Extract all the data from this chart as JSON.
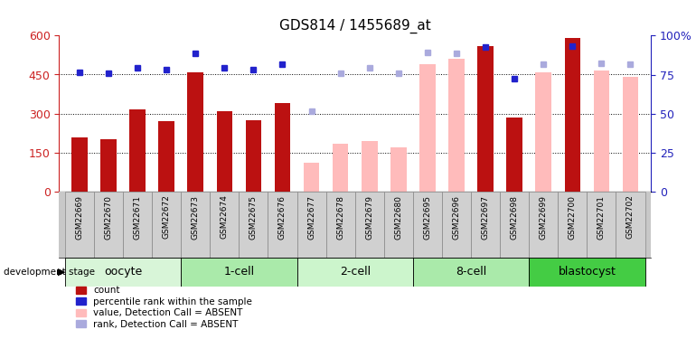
{
  "title": "GDS814 / 1455689_at",
  "samples": [
    "GSM22669",
    "GSM22670",
    "GSM22671",
    "GSM22672",
    "GSM22673",
    "GSM22674",
    "GSM22675",
    "GSM22676",
    "GSM22677",
    "GSM22678",
    "GSM22679",
    "GSM22680",
    "GSM22695",
    "GSM22696",
    "GSM22697",
    "GSM22698",
    "GSM22699",
    "GSM22700",
    "GSM22701",
    "GSM22702"
  ],
  "count_values": [
    210,
    200,
    315,
    270,
    460,
    310,
    275,
    340,
    null,
    null,
    null,
    null,
    null,
    null,
    560,
    285,
    null,
    590,
    null,
    null
  ],
  "absent_values": [
    null,
    null,
    null,
    null,
    null,
    null,
    null,
    null,
    110,
    185,
    195,
    170,
    490,
    510,
    null,
    null,
    460,
    null,
    465,
    440
  ],
  "rank_present": [
    460,
    455,
    475,
    468,
    530,
    475,
    468,
    490,
    null,
    null,
    null,
    null,
    null,
    null,
    555,
    435,
    null,
    560,
    null,
    null
  ],
  "rank_absent": [
    null,
    null,
    null,
    null,
    null,
    null,
    null,
    null,
    310,
    455,
    475,
    455,
    535,
    530,
    null,
    null,
    490,
    null,
    495,
    490
  ],
  "bar_color_present": "#bb1111",
  "bar_color_absent": "#ffbbbb",
  "dot_color_present": "#2222cc",
  "dot_color_absent": "#aaaadd",
  "bar_width": 0.55,
  "left_tick_color": "#cc2222",
  "right_tick_color": "#2222bb",
  "yticks_left": [
    0,
    150,
    300,
    450,
    600
  ],
  "yticks_right": [
    0,
    25,
    50,
    75,
    100
  ],
  "grid_lines": [
    150,
    300,
    450
  ],
  "stage_names": [
    "oocyte",
    "1-cell",
    "2-cell",
    "8-cell",
    "blastocyst"
  ],
  "stage_boundaries": [
    0,
    4,
    8,
    12,
    16,
    20
  ],
  "stage_colors": [
    "#d8f5d8",
    "#aaeaaa",
    "#ccf5cc",
    "#aaeaaa",
    "#44cc44"
  ],
  "xticklabel_bg": "#cccccc",
  "legend_labels": [
    "count",
    "percentile rank within the sample",
    "value, Detection Call = ABSENT",
    "rank, Detection Call = ABSENT"
  ],
  "legend_colors": [
    "#bb1111",
    "#2222cc",
    "#ffbbbb",
    "#aaaadd"
  ]
}
